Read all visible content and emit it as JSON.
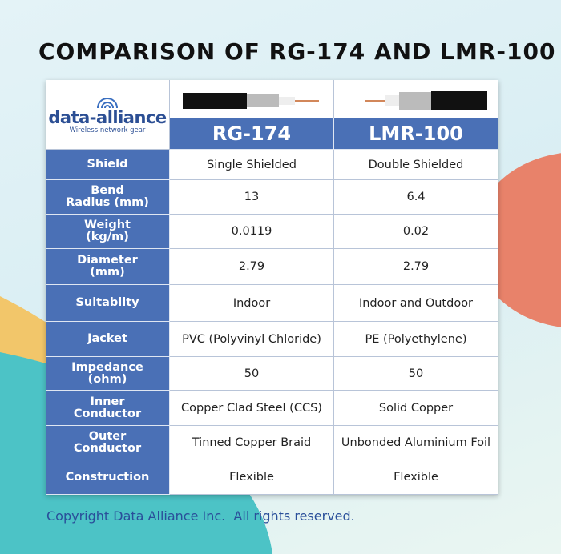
{
  "header": {
    "title": "COMPARISON OF RG-174 AND LMR-100"
  },
  "logo": {
    "name": "data-alliance",
    "tagline": "Wireless network gear"
  },
  "table": {
    "columns": [
      "RG-174",
      "LMR-100"
    ],
    "rows": [
      {
        "label": [
          "Shield"
        ],
        "values": [
          "Single Shielded",
          "Double Shielded"
        ]
      },
      {
        "label": [
          "Bend",
          "Radius (mm)"
        ],
        "values": [
          "13",
          "6.4"
        ]
      },
      {
        "label": [
          "Weight",
          "(kg/m)"
        ],
        "values": [
          "0.0119",
          "0.02"
        ]
      },
      {
        "label": [
          "Diameter",
          "(mm)"
        ],
        "values": [
          "2.79",
          "2.79"
        ]
      },
      {
        "label": [
          "Suitablity"
        ],
        "values": [
          "Indoor",
          "Indoor and Outdoor"
        ]
      },
      {
        "label": [
          "Jacket"
        ],
        "values": [
          "PVC (Polyvinyl Chloride)",
          "PE (Polyethylene)"
        ]
      },
      {
        "label": [
          "Impedance",
          "(ohm)"
        ],
        "values": [
          "50",
          "50"
        ]
      },
      {
        "label": [
          "Inner",
          "Conductor"
        ],
        "values": [
          "Copper Clad Steel (CCS)",
          "Solid Copper"
        ]
      },
      {
        "label": [
          "Outer",
          "Conductor"
        ],
        "values": [
          "Tinned Copper Braid",
          "Unbonded Aluminium Foil"
        ]
      },
      {
        "label": [
          "Construction"
        ],
        "values": [
          "Flexible",
          "Flexible"
        ]
      }
    ]
  },
  "footer": "Copyright Data Alliance Inc.  All rights reserved."
}
